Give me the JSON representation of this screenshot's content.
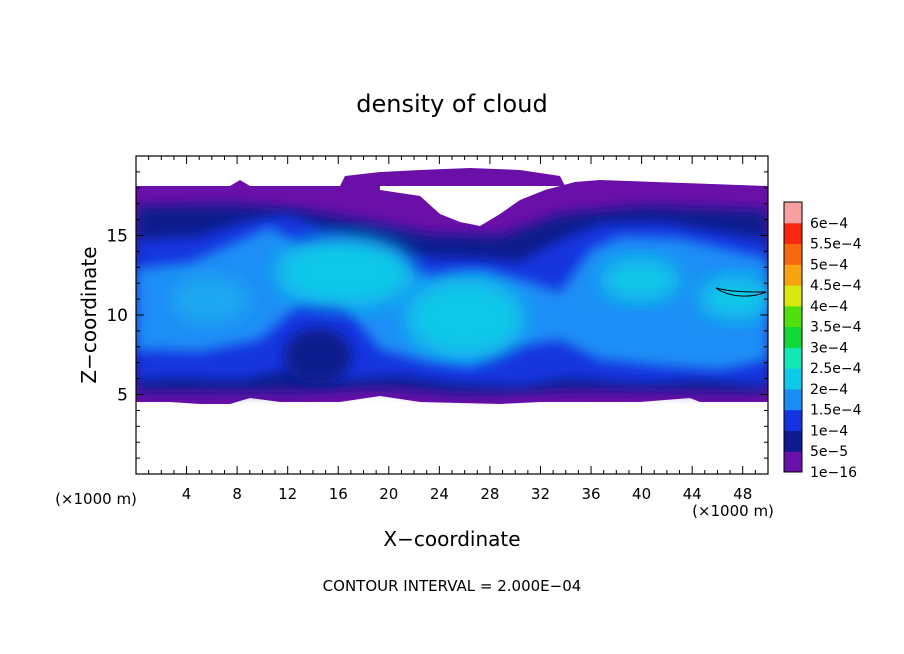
{
  "chart_data": {
    "type": "heatmap",
    "title": "density of cloud",
    "xlabel": "X−coordinate",
    "ylabel": "Z−coordinate",
    "x_unit_label": "(×1000 m)",
    "y_unit_label": "(×1000 m)",
    "xlim": [
      0,
      50
    ],
    "ylim": [
      0,
      20
    ],
    "x_ticks": [
      4,
      8,
      12,
      16,
      20,
      24,
      28,
      32,
      36,
      40,
      44,
      48
    ],
    "y_ticks": [
      5,
      10,
      15
    ],
    "footer": "CONTOUR INTERVAL = 2.000E−04",
    "colorbar": {
      "labels": [
        "1e−16",
        "5e−5",
        "1e−4",
        "1.5e−4",
        "2e−4",
        "2.5e−4",
        "3e−4",
        "3.5e−4",
        "4e−4",
        "4.5e−4",
        "5e−4",
        "5.5e−4",
        "6e−4"
      ],
      "colors": [
        "#6a10a8",
        "#101a8c",
        "#1434e0",
        "#1a8ef5",
        "#10c8e8",
        "#12e8b4",
        "#12d838",
        "#50e010",
        "#d8e810",
        "#f7a410",
        "#f86810",
        "#f82810",
        "#f8a0a0"
      ]
    },
    "cloud_regions": {
      "cloud_base_km": 5,
      "cloud_top_km": 18,
      "core_centers_x_km": [
        4,
        18,
        26,
        40,
        47
      ],
      "max_value_approx": 0.00022
    }
  }
}
